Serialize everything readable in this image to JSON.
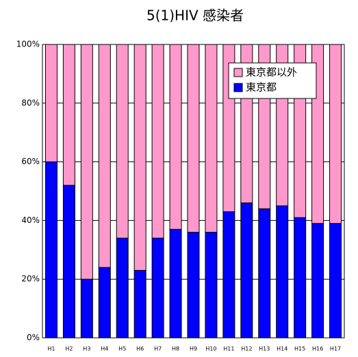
{
  "chart_data": {
    "type": "stacked_bar",
    "title": "5(1)HIV 感染者",
    "categories": [
      "H1",
      "H2",
      "H3",
      "H4",
      "H5",
      "H6",
      "H7",
      "H8",
      "H9",
      "H10",
      "H11",
      "H12",
      "H13",
      "H14",
      "H15",
      "H16",
      "H17"
    ],
    "series": [
      {
        "name": "東京都",
        "color": "#0000ff",
        "values": [
          60,
          52,
          20,
          24,
          34,
          23,
          34,
          37,
          36,
          36,
          43,
          46,
          44,
          45,
          41,
          39,
          39
        ]
      },
      {
        "name": "東京都以外",
        "color": "#ff99cc",
        "values": [
          40,
          48,
          80,
          76,
          66,
          77,
          66,
          63,
          64,
          64,
          57,
          54,
          56,
          55,
          59,
          61,
          61
        ]
      }
    ],
    "ylim": [
      0,
      100
    ],
    "yticks": [
      {
        "value": 0,
        "label": "0%"
      },
      {
        "value": 20,
        "label": "20%"
      },
      {
        "value": 40,
        "label": "40%"
      },
      {
        "value": 60,
        "label": "60%"
      },
      {
        "value": 80,
        "label": "80%"
      },
      {
        "value": 100,
        "label": "100%"
      }
    ],
    "grid": true,
    "legend": "top-right"
  }
}
